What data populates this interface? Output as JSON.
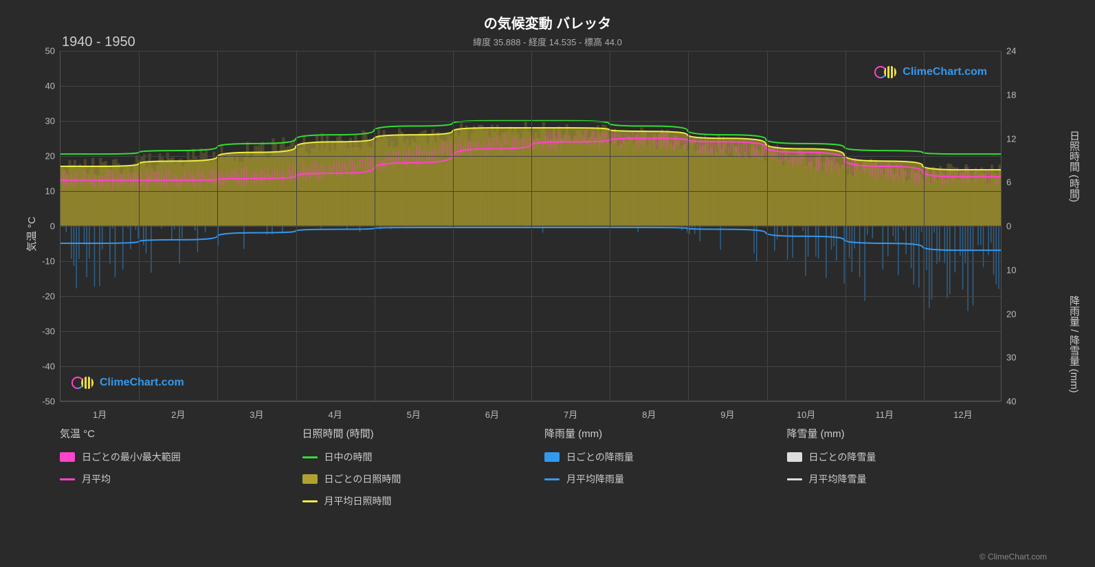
{
  "title": "の気候変動 バレッタ",
  "subtitle": "緯度 35.888 - 経度 14.535 - 標高 44.0",
  "year_range": "1940 - 1950",
  "watermark_text": "ClimeChart.com",
  "attribution": "© ClimeChart.com",
  "background_color": "#2a2a2a",
  "grid_color": "#444444",
  "text_color": "#cccccc",
  "axes": {
    "y_left_label": "気温 °C",
    "y_left_min": -50,
    "y_left_max": 50,
    "y_left_ticks": [
      -50,
      -40,
      -30,
      -20,
      -10,
      0,
      10,
      20,
      30,
      40,
      50
    ],
    "y_right_top_label": "日照時間 (時間)",
    "y_right_top_ticks": [
      0,
      6,
      12,
      18,
      24
    ],
    "y_right_bottom_label": "降雨量 / 降雪量 (mm)",
    "y_right_bottom_ticks": [
      0,
      10,
      20,
      30,
      40
    ],
    "x_labels": [
      "1月",
      "2月",
      "3月",
      "4月",
      "5月",
      "6月",
      "7月",
      "8月",
      "9月",
      "10月",
      "11月",
      "12月"
    ]
  },
  "series": {
    "daylight": {
      "color": "#33dd33",
      "width": 2,
      "values": [
        20.5,
        21.5,
        23.5,
        26,
        28.5,
        30,
        30,
        28.5,
        26,
        23.5,
        21.5,
        20.5
      ]
    },
    "sunshine_avg": {
      "color": "#eeee44",
      "width": 2,
      "values": [
        17,
        18.5,
        21,
        24,
        26,
        28,
        28,
        27,
        25,
        22,
        18.5,
        16
      ]
    },
    "sunshine_fill": {
      "color": "#b0a030",
      "opacity": 0.65
    },
    "temp_avg": {
      "color": "#ff44cc",
      "width": 2,
      "values": [
        13,
        13,
        13.5,
        15,
        18,
        22,
        24,
        25,
        24,
        21,
        17,
        14
      ]
    },
    "temp_range": {
      "color": "#ff44cc",
      "opacity": 0.35
    },
    "rain_avg": {
      "color": "#3399ee",
      "width": 2,
      "values": [
        -5,
        -4,
        -2,
        -1,
        -0.5,
        -0.5,
        -0.5,
        -0.5,
        -1,
        -3,
        -5,
        -7
      ]
    },
    "rain_bars": {
      "color": "#3399ee",
      "opacity": 0.5
    }
  },
  "legend": {
    "temp": {
      "header": "気温 °C",
      "items": [
        {
          "type": "swatch",
          "color": "#ff44cc",
          "label": "日ごとの最小/最大範囲"
        },
        {
          "type": "line",
          "color": "#ff44cc",
          "label": "月平均"
        }
      ]
    },
    "sun": {
      "header": "日照時間 (時間)",
      "items": [
        {
          "type": "line",
          "color": "#33dd33",
          "label": "日中の時間"
        },
        {
          "type": "swatch",
          "color": "#b0a030",
          "label": "日ごとの日照時間"
        },
        {
          "type": "line",
          "color": "#eeee44",
          "label": "月平均日照時間"
        }
      ]
    },
    "rain": {
      "header": "降雨量 (mm)",
      "items": [
        {
          "type": "swatch",
          "color": "#3399ee",
          "label": "日ごとの降雨量"
        },
        {
          "type": "line",
          "color": "#3399ee",
          "label": "月平均降雨量"
        }
      ]
    },
    "snow": {
      "header": "降雪量 (mm)",
      "items": [
        {
          "type": "swatch",
          "color": "#dddddd",
          "label": "日ごとの降雪量"
        },
        {
          "type": "line",
          "color": "#dddddd",
          "label": "月平均降雪量"
        }
      ]
    }
  }
}
